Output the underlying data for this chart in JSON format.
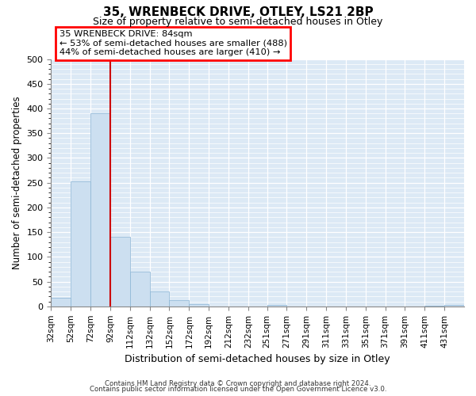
{
  "title": "35, WRENBECK DRIVE, OTLEY, LS21 2BP",
  "subtitle": "Size of property relative to semi-detached houses in Otley",
  "xlabel": "Distribution of semi-detached houses by size in Otley",
  "ylabel": "Number of semi-detached properties",
  "bar_labels": [
    "32sqm",
    "52sqm",
    "72sqm",
    "92sqm",
    "112sqm",
    "132sqm",
    "152sqm",
    "172sqm",
    "192sqm",
    "212sqm",
    "232sqm",
    "251sqm",
    "271sqm",
    "291sqm",
    "311sqm",
    "331sqm",
    "351sqm",
    "371sqm",
    "391sqm",
    "411sqm",
    "431sqm"
  ],
  "bar_values": [
    18,
    253,
    390,
    140,
    70,
    30,
    13,
    5,
    0,
    0,
    0,
    3,
    0,
    0,
    0,
    0,
    0,
    0,
    0,
    2,
    3
  ],
  "bar_color": "#ccdff0",
  "bar_edge_color": "#8ab4d4",
  "vline_x": 92,
  "vline_color": "#cc0000",
  "ylim": [
    0,
    500
  ],
  "yticks": [
    0,
    50,
    100,
    150,
    200,
    250,
    300,
    350,
    400,
    450,
    500
  ],
  "annotation_title": "35 WRENBECK DRIVE: 84sqm",
  "annotation_line1": "← 53% of semi-detached houses are smaller (488)",
  "annotation_line2": "44% of semi-detached houses are larger (410) →",
  "footer_line1": "Contains HM Land Registry data © Crown copyright and database right 2024.",
  "footer_line2": "Contains public sector information licensed under the Open Government Licence v3.0.",
  "background_color": "#dce9f5",
  "grid_color": "white",
  "bin_edges": [
    32,
    52,
    72,
    92,
    112,
    132,
    152,
    172,
    192,
    212,
    232,
    251,
    271,
    291,
    311,
    331,
    351,
    371,
    391,
    411,
    431,
    451
  ]
}
